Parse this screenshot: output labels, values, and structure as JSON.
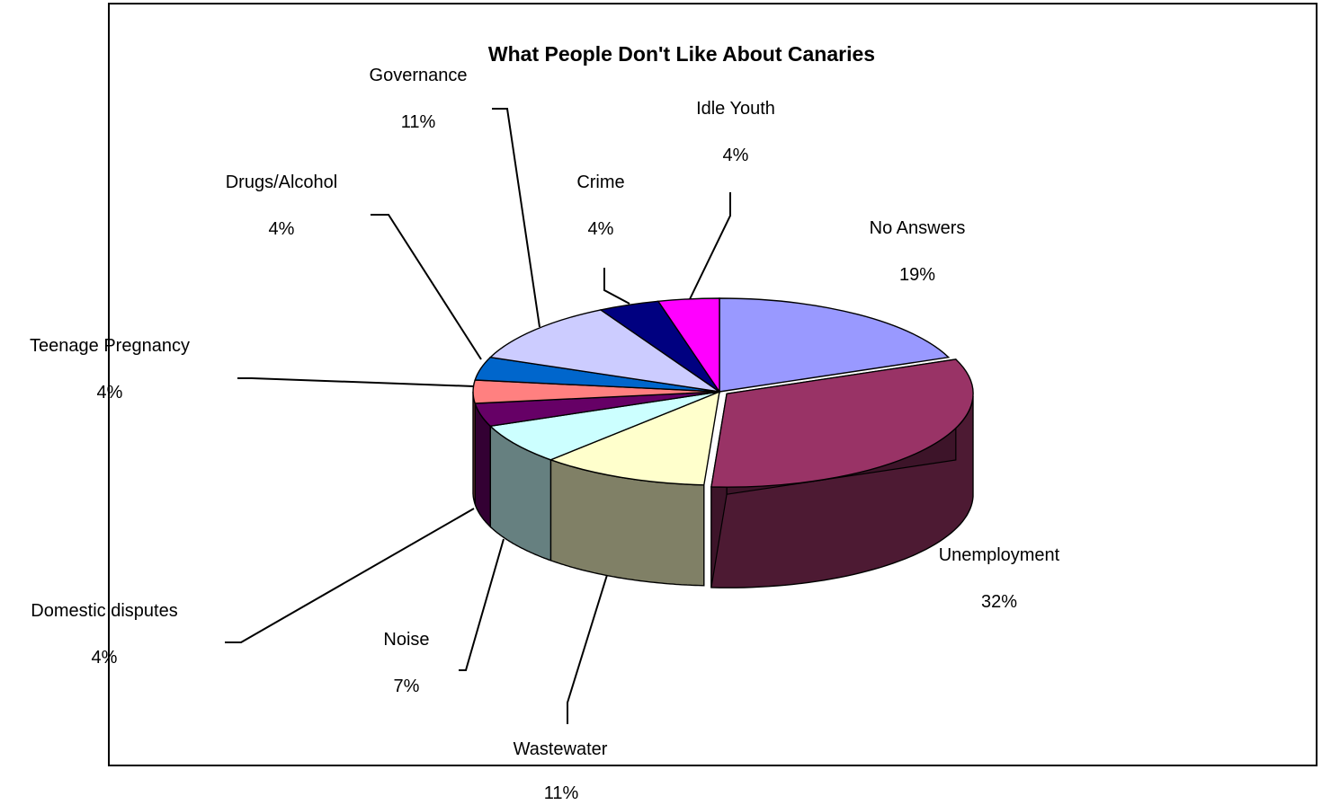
{
  "chart_data": {
    "type": "pie",
    "style": "3d-exploded-perspective",
    "title": "What People Don't Like About Canaries",
    "slices": [
      {
        "label": "No Answers",
        "value": 19,
        "value_label": "19%",
        "color": "#9999FF"
      },
      {
        "label": "Unemployment",
        "value": 32,
        "value_label": "32%",
        "color": "#993366"
      },
      {
        "label": "Wastewater",
        "value": 11,
        "value_label": "11%",
        "color": "#FFFFCC"
      },
      {
        "label": "Noise",
        "value": 7,
        "value_label": "7%",
        "color": "#CCFFFF"
      },
      {
        "label": "Domestic disputes",
        "value": 4,
        "value_label": "4%",
        "color": "#660066"
      },
      {
        "label": "Teenage Pregnancy",
        "value": 4,
        "value_label": "4%",
        "color": "#FF8080"
      },
      {
        "label": "Drugs/Alcohol",
        "value": 4,
        "value_label": "4%",
        "color": "#0066CC"
      },
      {
        "label": "Governance",
        "value": 11,
        "value_label": "11%",
        "color": "#CCCCFF"
      },
      {
        "label": "Crime",
        "value": 4,
        "value_label": "4%",
        "color": "#000080"
      },
      {
        "label": "Idle Youth",
        "value": 4,
        "value_label": "4%",
        "color": "#FF00FF"
      }
    ],
    "legend": "none",
    "grid": false
  }
}
